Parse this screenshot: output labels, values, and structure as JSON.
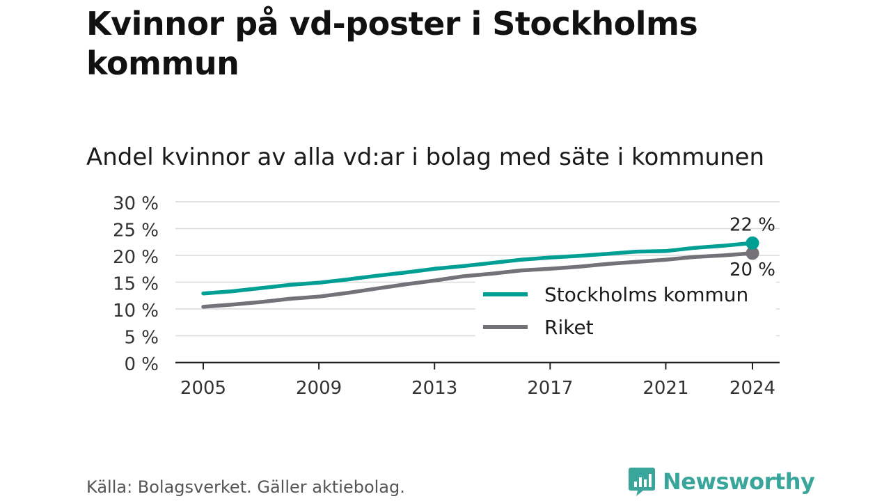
{
  "title": "Kvinnor på vd-poster i Stockholms kommun",
  "subtitle": "Andel kvinnor av alla vd:ar i bolag med säte i kommunen",
  "source": "Källa: Bolagsverket. Gäller aktiebolag.",
  "brand": "Newsworthy",
  "colors": {
    "stockholm": "#009f94",
    "riket": "#757178",
    "brand": "#3aa69b"
  },
  "chart_data": {
    "type": "line",
    "x": [
      2005,
      2006,
      2007,
      2008,
      2009,
      2010,
      2011,
      2012,
      2013,
      2014,
      2015,
      2016,
      2017,
      2018,
      2019,
      2020,
      2021,
      2022,
      2023,
      2024
    ],
    "x_ticks": [
      2005,
      2009,
      2013,
      2017,
      2021,
      2024
    ],
    "x_tick_labels": [
      "2005",
      "2009",
      "2013",
      "2017",
      "2021",
      "2024"
    ],
    "ylim": [
      0,
      30
    ],
    "y_ticks": [
      0,
      5,
      10,
      15,
      20,
      25,
      30
    ],
    "y_tick_labels": [
      "0 %",
      "5 %",
      "10 %",
      "15 %",
      "20 %",
      "25 %",
      "30 %"
    ],
    "grid": true,
    "legend_position": "bottom-right",
    "series": [
      {
        "name": "Stockholms kommun",
        "color": "#009f94",
        "values": [
          12.9,
          13.3,
          13.9,
          14.5,
          14.9,
          15.5,
          16.2,
          16.8,
          17.5,
          18.0,
          18.6,
          19.2,
          19.6,
          19.9,
          20.3,
          20.7,
          20.8,
          21.4,
          21.8,
          22.3
        ],
        "end_label": "22 %"
      },
      {
        "name": "Riket",
        "color": "#757178",
        "values": [
          10.4,
          10.8,
          11.3,
          11.9,
          12.3,
          13.0,
          13.8,
          14.6,
          15.3,
          16.1,
          16.6,
          17.2,
          17.5,
          17.9,
          18.4,
          18.8,
          19.2,
          19.7,
          20.0,
          20.4
        ],
        "end_label": "20 %"
      }
    ]
  }
}
